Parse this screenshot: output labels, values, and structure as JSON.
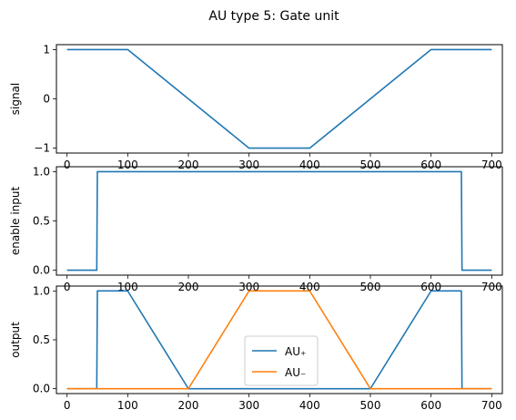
{
  "title": "AU type 5: Gate unit",
  "chart_data": [
    {
      "type": "line",
      "ylabel": "signal",
      "xlim": [
        -17.5,
        717.5
      ],
      "ylim": [
        -1.1,
        1.1
      ],
      "xticks": [
        0,
        100,
        200,
        300,
        400,
        500,
        600,
        700
      ],
      "yticks": [
        -1,
        0,
        1
      ],
      "ytick_labels": [
        "−1",
        "0",
        "1"
      ],
      "series": [
        {
          "color": "#1f77b4",
          "x": [
            0,
            100,
            300,
            400,
            600,
            700
          ],
          "y": [
            1,
            1,
            -1,
            -1,
            1,
            1
          ]
        }
      ]
    },
    {
      "type": "line",
      "ylabel": "enable input",
      "xlim": [
        -17.5,
        717.5
      ],
      "ylim": [
        -0.05,
        1.05
      ],
      "xticks": [
        0,
        100,
        200,
        300,
        400,
        500,
        600,
        700
      ],
      "yticks": [
        0,
        0.5,
        1
      ],
      "ytick_labels": [
        "0.0",
        "0.5",
        "1.0"
      ],
      "series": [
        {
          "color": "#1f77b4",
          "x": [
            0,
            49,
            50,
            650,
            651,
            700
          ],
          "y": [
            0,
            0,
            1,
            1,
            0,
            0
          ]
        }
      ]
    },
    {
      "type": "line",
      "ylabel": "output",
      "xlim": [
        -17.5,
        717.5
      ],
      "ylim": [
        -0.05,
        1.05
      ],
      "xticks": [
        0,
        100,
        200,
        300,
        400,
        500,
        600,
        700
      ],
      "yticks": [
        0,
        0.5,
        1
      ],
      "ytick_labels": [
        "0.0",
        "0.5",
        "1.0"
      ],
      "legend": {
        "position": "lower-center",
        "entries": [
          "AU₊",
          "AU₋"
        ]
      },
      "series": [
        {
          "name": "AU₊",
          "color": "#1f77b4",
          "x": [
            0,
            49,
            50,
            100,
            200,
            500,
            600,
            650,
            651,
            700
          ],
          "y": [
            0,
            0,
            1,
            1,
            0,
            0,
            1,
            1,
            0,
            0
          ]
        },
        {
          "name": "AU₋",
          "color": "#ff7f0e",
          "x": [
            0,
            200,
            300,
            400,
            500,
            700
          ],
          "y": [
            0,
            0,
            1,
            1,
            0,
            0
          ]
        }
      ]
    }
  ]
}
